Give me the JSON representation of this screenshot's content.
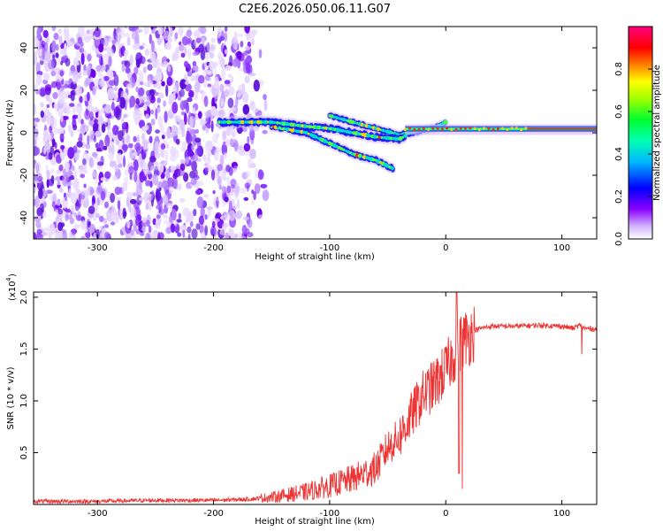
{
  "figure_title": "C2E6.2026.050.06.11.G07",
  "chart_data": [
    {
      "type": "heatmap",
      "title": "C2E6.2026.050.06.11.G07",
      "xlabel": "Height of straight line (km)",
      "ylabel": "Frequency (Hz)",
      "xlim": [
        -355,
        130
      ],
      "ylim": [
        -50,
        50
      ],
      "xticks": [
        -300,
        -200,
        -100,
        0,
        100
      ],
      "yticks": [
        -40,
        -20,
        0,
        20,
        40
      ],
      "colorbar": {
        "label": "Normalized spectral amplitude",
        "range": [
          0,
          1
        ],
        "ticks": [
          "0.0",
          "0.2",
          "0.4",
          "0.6",
          "0.8"
        ],
        "colormap": [
          "#ffffff",
          "#c8a0ff",
          "#7a00ff",
          "#0000ff",
          "#00c8ff",
          "#00ff80",
          "#80ff00",
          "#ffff00",
          "#ff8000",
          "#ff0000",
          "#ff0080"
        ]
      },
      "features": {
        "noise_region_x": [
          -355,
          -155
        ],
        "main_track": [
          [
            -195,
            5
          ],
          [
            -150,
            5
          ],
          [
            -120,
            3
          ],
          [
            -100,
            2
          ],
          [
            -80,
            0
          ],
          [
            -60,
            -2
          ],
          [
            -40,
            -3
          ],
          [
            -30,
            0
          ],
          [
            -15,
            1
          ],
          [
            0,
            2
          ],
          [
            50,
            2
          ],
          [
            130,
            2
          ]
        ],
        "secondary_track": [
          [
            -100,
            8
          ],
          [
            -80,
            5
          ],
          [
            -60,
            2
          ],
          [
            -40,
            -1
          ],
          [
            -10,
            2
          ],
          [
            0,
            5
          ]
        ],
        "lower_track": [
          [
            -150,
            3
          ],
          [
            -120,
            0
          ],
          [
            -100,
            -5
          ],
          [
            -80,
            -10
          ],
          [
            -60,
            -13
          ],
          [
            -45,
            -17
          ]
        ]
      }
    },
    {
      "type": "line",
      "xlabel": "Height of straight line (km)",
      "ylabel": "SNR (10 * v/v)",
      "yscale_label": "(x10",
      "yscale_exp": "4",
      "xlim": [
        -355,
        130
      ],
      "ylim": [
        0,
        2.05
      ],
      "xticks": [
        -300,
        -200,
        -100,
        0,
        100
      ],
      "yticks": [
        0.5,
        1.0,
        1.5,
        2.0
      ],
      "series": [
        {
          "name": "SNR",
          "color": "#ee3333",
          "x": [
            -355,
            -300,
            -250,
            -200,
            -170,
            -150,
            -120,
            -100,
            -80,
            -60,
            -50,
            -40,
            -30,
            -20,
            -10,
            0,
            5,
            10,
            12,
            15,
            20,
            25,
            30,
            40,
            60,
            80,
            100,
            110,
            115,
            120,
            130
          ],
          "y": [
            0.03,
            0.03,
            0.04,
            0.04,
            0.05,
            0.07,
            0.12,
            0.18,
            0.25,
            0.35,
            0.55,
            0.65,
            0.85,
            1.05,
            1.15,
            1.3,
            1.4,
            1.5,
            1.55,
            1.6,
            1.62,
            1.68,
            1.7,
            1.72,
            1.72,
            1.73,
            1.72,
            1.7,
            1.73,
            1.7,
            1.69
          ]
        }
      ]
    }
  ]
}
